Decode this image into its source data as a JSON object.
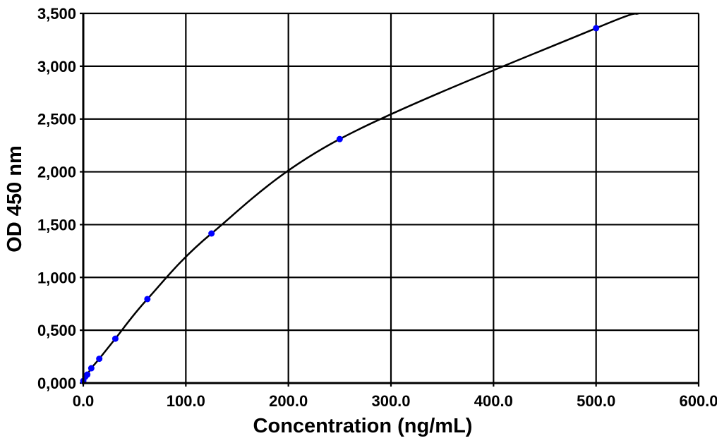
{
  "chart_data": {
    "type": "scatter",
    "title": "",
    "xlabel": "Concentration (ng/mL)",
    "ylabel": "OD 450 nm",
    "xlim": [
      0,
      600
    ],
    "ylim": [
      0,
      3.5
    ],
    "grid": true,
    "x_ticks": [
      0,
      100,
      200,
      300,
      400,
      500,
      600
    ],
    "x_tick_labels": [
      "0.0",
      "100.0",
      "200.0",
      "300.0",
      "400.0",
      "500.0",
      "600.0"
    ],
    "y_ticks": [
      0,
      0.5,
      1.0,
      1.5,
      2.0,
      2.5,
      3.0,
      3.5
    ],
    "y_tick_labels": [
      "0,000",
      "0,500",
      "1,000",
      "1,500",
      "2,000",
      "2,500",
      "3,000",
      "3,500"
    ],
    "points": {
      "x": [
        0,
        1.95,
        3.9,
        7.8,
        15.6,
        31.25,
        62.5,
        125,
        250,
        500
      ],
      "y": [
        0.02,
        0.06,
        0.08,
        0.14,
        0.23,
        0.42,
        0.795,
        1.416,
        2.31,
        3.36
      ]
    },
    "fit_line": true,
    "colors": {
      "points": "#0000ff",
      "curve": "#000000",
      "grid": "#000000"
    }
  }
}
